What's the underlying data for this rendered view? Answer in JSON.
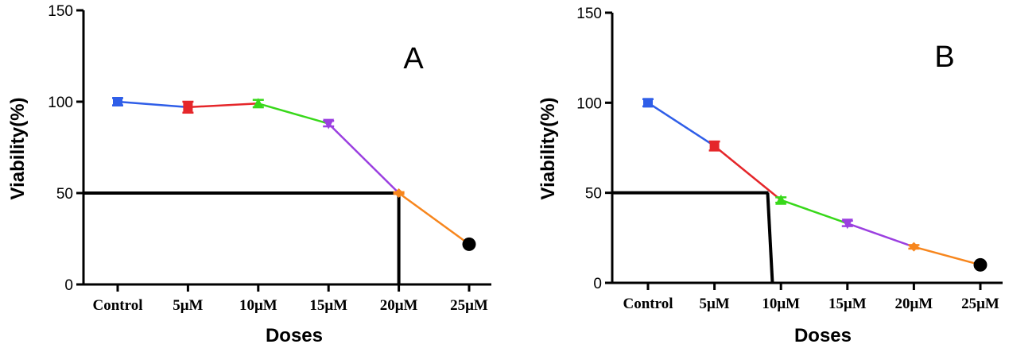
{
  "chart_data": [
    {
      "type": "line",
      "panel_label": "A",
      "categories": [
        "Control",
        "5μM",
        "10μM",
        "15μM",
        "20μM",
        "25μM"
      ],
      "values": [
        100,
        97,
        99,
        88,
        50,
        22
      ],
      "errors": [
        2,
        3,
        2,
        1.5,
        0.5,
        0
      ],
      "markers": [
        "square",
        "square",
        "triangle-up",
        "triangle-down",
        "diamond",
        "circle"
      ],
      "marker_colors": [
        "#2f5ee8",
        "#e5262a",
        "#38d81a",
        "#9b3fe0",
        "#f7861d",
        "#000000"
      ],
      "segment_colors": [
        "#2f5ee8",
        "#e5262a",
        "#38d81a",
        "#9b3fe0",
        "#f7861d"
      ],
      "xlabel": "Doses",
      "ylabel": "Viability(%)",
      "ylim": [
        0,
        150
      ],
      "yticks": [
        0,
        50,
        100,
        150
      ],
      "ic50_guide": {
        "y": 50,
        "x_category_index": 4
      },
      "grid": false
    },
    {
      "type": "line",
      "panel_label": "B",
      "categories": [
        "Control",
        "5μM",
        "10μM",
        "15μM",
        "20μM",
        "25μM"
      ],
      "values": [
        100,
        76,
        46,
        33,
        20,
        10
      ],
      "errors": [
        2,
        2.5,
        1.5,
        1.5,
        1,
        0
      ],
      "markers": [
        "square",
        "square",
        "triangle-up",
        "triangle-down",
        "diamond",
        "circle"
      ],
      "marker_colors": [
        "#2f5ee8",
        "#e5262a",
        "#38d81a",
        "#9b3fe0",
        "#f7861d",
        "#000000"
      ],
      "segment_colors": [
        "#2f5ee8",
        "#e5262a",
        "#38d81a",
        "#9b3fe0",
        "#f7861d"
      ],
      "xlabel": "Doses",
      "ylabel": "Viability(%)",
      "ylim": [
        0,
        150
      ],
      "yticks": [
        0,
        50,
        100,
        150
      ],
      "ic50_guide": {
        "y": 50,
        "x_category_index": 1.8
      },
      "grid": false
    }
  ]
}
